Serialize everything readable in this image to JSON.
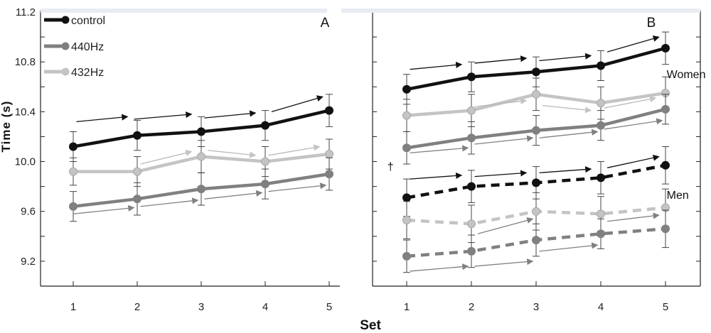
{
  "chart_data": {
    "type": "line",
    "ylabel": "Time (s)",
    "xlabel": "Set",
    "x": [
      1,
      2,
      3,
      4,
      5
    ],
    "x_ticks": [
      "1",
      "2",
      "3",
      "4",
      "5"
    ],
    "y_ticks": [
      "9.2",
      "9.6",
      "10.0",
      "10.4",
      "10.8",
      "11.2"
    ],
    "ylim": [
      9.0,
      11.2
    ],
    "legend": [
      {
        "label": "control",
        "color": "#111111"
      },
      {
        "label": "440Hz",
        "color": "#808080"
      },
      {
        "label": "432Hz",
        "color": "#c4c4c4"
      }
    ],
    "panels": [
      {
        "label": "A",
        "series": [
          {
            "name": "control",
            "color": "#111111",
            "dashed": false,
            "values": [
              10.12,
              10.21,
              10.24,
              10.29,
              10.41
            ],
            "err": [
              0.12,
              0.12,
              0.12,
              0.12,
              0.13
            ],
            "arrows": [
              [
                1.05,
                10.32,
                1.85,
                10.36
              ],
              [
                1.95,
                10.34,
                2.85,
                10.38
              ],
              [
                3.05,
                10.35,
                3.85,
                10.39
              ],
              [
                4.1,
                10.4,
                4.9,
                10.52
              ]
            ]
          },
          {
            "name": "432Hz",
            "color": "#c4c4c4",
            "dashed": false,
            "values": [
              9.92,
              9.92,
              10.04,
              10.0,
              10.06
            ],
            "err": [
              0.11,
              0.12,
              0.13,
              0.12,
              0.12
            ],
            "arrows": [
              [
                2.05,
                9.98,
                2.85,
                10.08
              ],
              [
                3.1,
                10.09,
                3.85,
                10.05
              ],
              [
                4.05,
                10.05,
                4.85,
                10.12
              ]
            ]
          },
          {
            "name": "440Hz",
            "color": "#808080",
            "dashed": false,
            "values": [
              9.64,
              9.7,
              9.78,
              9.82,
              9.9
            ],
            "err": [
              0.12,
              0.13,
              0.13,
              0.12,
              0.13
            ],
            "arrows": [
              [
                1.0,
                9.58,
                1.95,
                9.63
              ],
              [
                2.05,
                9.64,
                2.95,
                9.69
              ],
              [
                3.05,
                9.7,
                3.95,
                9.75
              ],
              [
                4.05,
                9.76,
                4.95,
                9.81
              ]
            ]
          }
        ]
      },
      {
        "label": "B",
        "group_labels": [
          {
            "text": "Women",
            "x": 5.15,
            "y": 10.67
          },
          {
            "text": "Men",
            "x": 5.15,
            "y": 9.7
          }
        ],
        "mark": {
          "text": "†",
          "x": 0.75,
          "y": 9.93
        },
        "series": [
          {
            "name": "control-women",
            "color": "#111111",
            "dashed": false,
            "values": [
              10.58,
              10.68,
              10.72,
              10.77,
              10.91
            ],
            "err": [
              0.12,
              0.12,
              0.12,
              0.12,
              0.13
            ],
            "arrows": [
              [
                1.05,
                10.74,
                1.85,
                10.78
              ],
              [
                2.05,
                10.79,
                2.85,
                10.83
              ],
              [
                3.05,
                10.81,
                3.85,
                10.85
              ],
              [
                4.1,
                10.88,
                4.9,
                11.0
              ]
            ]
          },
          {
            "name": "432Hz-women",
            "color": "#c4c4c4",
            "dashed": false,
            "values": [
              10.37,
              10.41,
              10.54,
              10.47,
              10.55
            ],
            "err": [
              0.13,
              0.13,
              0.13,
              0.13,
              0.13
            ],
            "arrows": [
              [
                2.05,
                10.44,
                2.85,
                10.49
              ],
              [
                3.1,
                10.45,
                3.85,
                10.41
              ],
              [
                4.05,
                10.43,
                4.85,
                10.51
              ]
            ]
          },
          {
            "name": "440Hz-women",
            "color": "#808080",
            "dashed": false,
            "values": [
              10.11,
              10.19,
              10.25,
              10.29,
              10.42
            ],
            "err": [
              0.13,
              0.13,
              0.12,
              0.12,
              0.12
            ],
            "arrows": [
              [
                1.05,
                10.07,
                1.95,
                10.11
              ],
              [
                2.05,
                10.14,
                2.95,
                10.19
              ],
              [
                3.05,
                10.19,
                3.95,
                10.24
              ],
              [
                4.05,
                10.26,
                4.95,
                10.33
              ]
            ]
          },
          {
            "name": "control-men",
            "color": "#111111",
            "dashed": true,
            "values": [
              9.71,
              9.8,
              9.83,
              9.87,
              9.97
            ],
            "err": [
              0.15,
              0.13,
              0.13,
              0.13,
              0.15
            ],
            "arrows": [
              [
                1.05,
                9.86,
                1.85,
                9.89
              ],
              [
                2.05,
                9.88,
                2.85,
                9.91
              ],
              [
                3.05,
                9.91,
                3.85,
                9.94
              ],
              [
                4.1,
                9.95,
                4.9,
                10.04
              ]
            ]
          },
          {
            "name": "432Hz-men",
            "color": "#c4c4c4",
            "dashed": true,
            "values": [
              9.53,
              9.5,
              9.6,
              9.58,
              9.63
            ],
            "err": [
              0.15,
              0.15,
              0.15,
              0.14,
              0.15
            ]
          },
          {
            "name": "440Hz-men",
            "color": "#808080",
            "dashed": true,
            "values": [
              9.24,
              9.28,
              9.37,
              9.42,
              9.46
            ],
            "err": [
              0.13,
              0.13,
              0.13,
              0.12,
              0.15
            ],
            "arrows": [
              [
                1.05,
                9.12,
                1.95,
                9.16
              ],
              [
                2.05,
                9.16,
                2.95,
                9.2
              ],
              [
                3.05,
                9.28,
                3.95,
                9.33
              ],
              [
                2.1,
                9.42,
                2.95,
                9.54
              ],
              [
                4.1,
                9.52,
                4.9,
                9.57
              ]
            ]
          }
        ]
      }
    ]
  }
}
